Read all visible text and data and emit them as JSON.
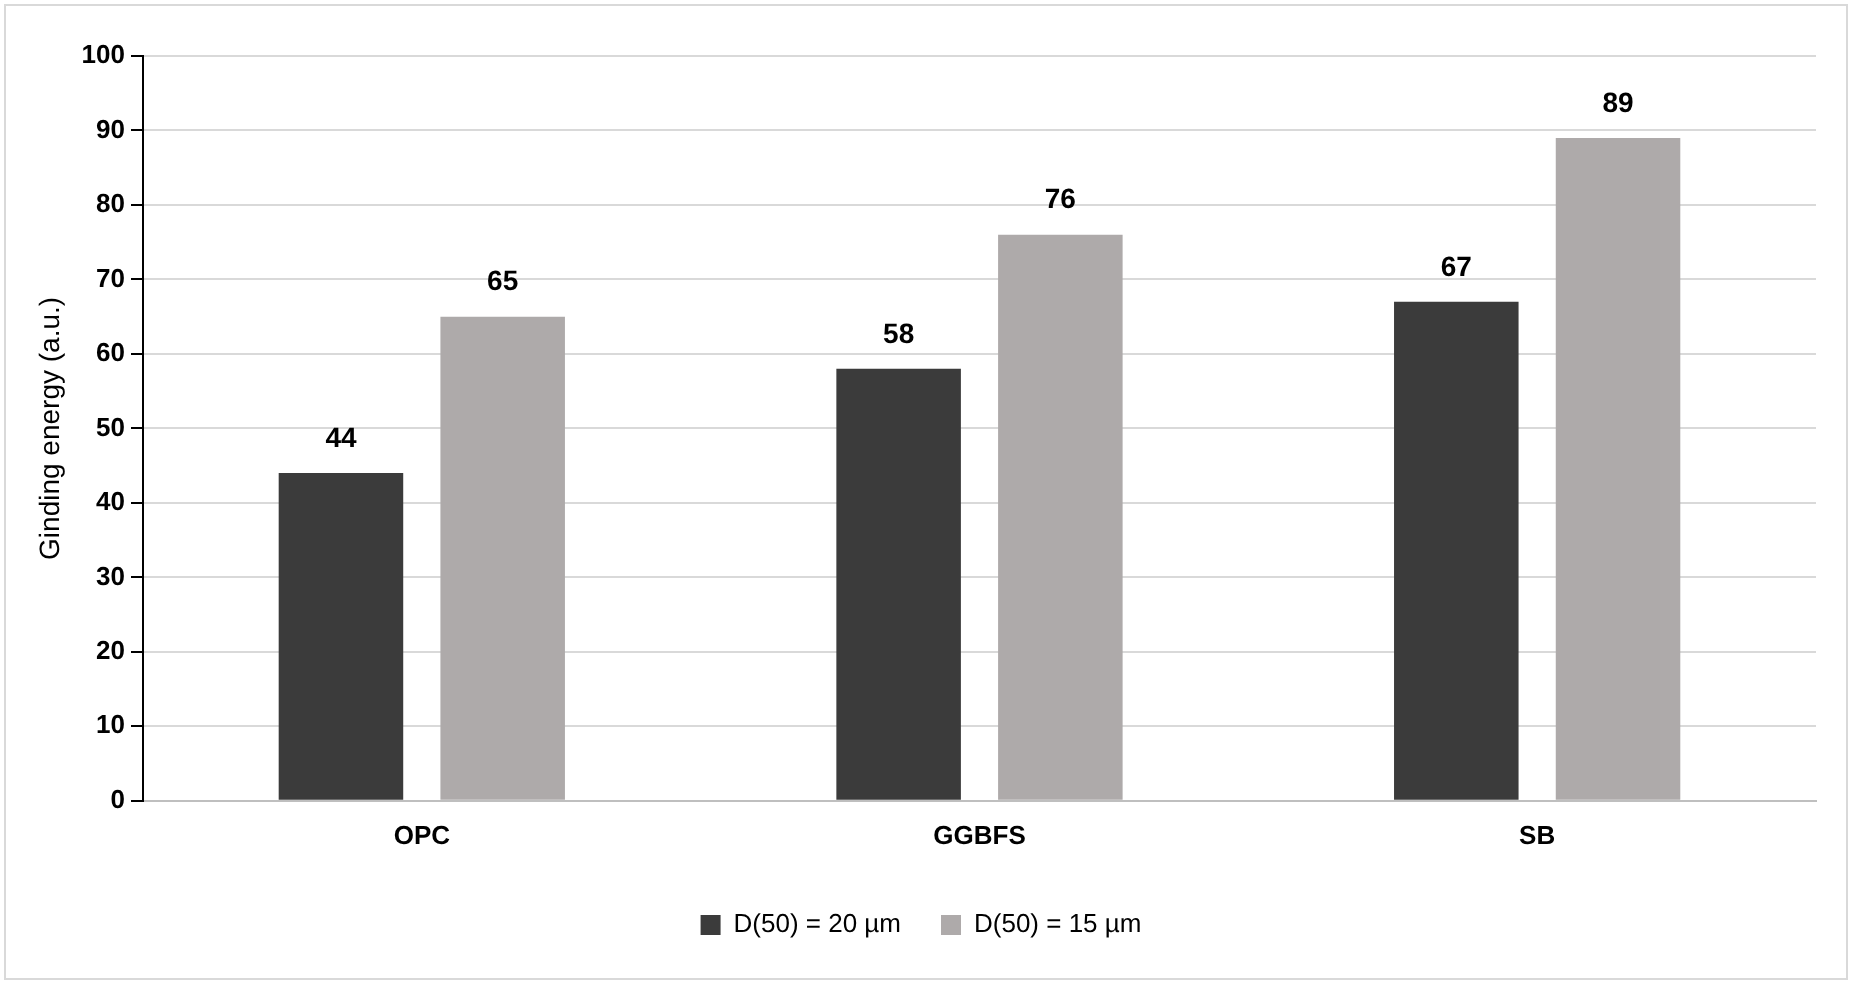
{
  "chart_data": {
    "type": "bar",
    "ylabel": "Ginding energy (a.u.)",
    "categories": [
      "OPC",
      "GGBFS",
      "SB"
    ],
    "series": [
      {
        "name": "D(50) = 20 µm",
        "color": "#3b3b3b",
        "values": [
          44,
          58,
          67
        ]
      },
      {
        "name": "D(50) = 15 µm",
        "color": "#aeaaaa",
        "values": [
          65,
          76,
          89
        ]
      }
    ],
    "ylim": [
      0,
      100
    ],
    "yticks": [
      0,
      10,
      20,
      30,
      40,
      50,
      60,
      70,
      80,
      90,
      100
    ],
    "grid": "y",
    "legend": "bottom",
    "data_labels": true
  }
}
